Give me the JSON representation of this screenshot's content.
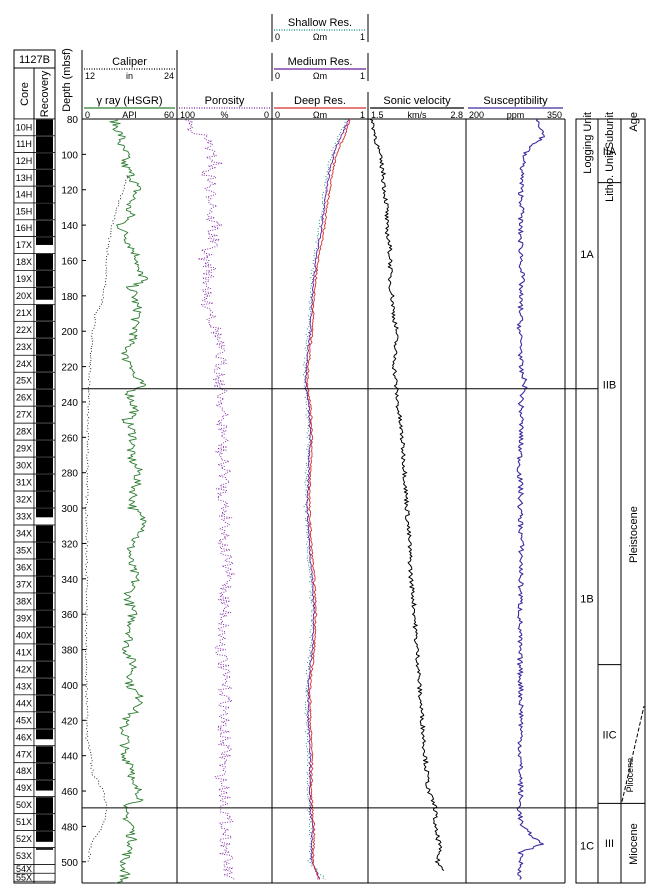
{
  "hole": "1127B",
  "column_labels": {
    "core": "Core",
    "recovery": "Recovery",
    "depth": "Depth (mbsf)",
    "logging_unit": "Logging Unit",
    "litho_unit": "Litho. Unit/Subunit",
    "age": "Age"
  },
  "colors": {
    "caliper": "#000000",
    "gamma": "#2e7d32",
    "porosity": "#7b1fa2",
    "shallow_res": "#00897b",
    "medium_res": "#6a1b9a",
    "deep_res": "#d32f2f",
    "sonic": "#000000",
    "susceptibility": "#3f2a9e"
  },
  "tracks": [
    {
      "id": "gamma",
      "headers": [
        {
          "title": "Caliper",
          "min": "12",
          "unit": "in",
          "max": "24",
          "color": "#000000",
          "style": "dotted"
        },
        {
          "title": "γ ray (HSGR)",
          "min": "0",
          "unit": "API",
          "max": "60",
          "color": "#2e7d32",
          "style": "solid"
        }
      ]
    },
    {
      "id": "porosity",
      "headers": [
        {
          "title": "Porosity",
          "min": "100",
          "unit": "%",
          "max": "0",
          "color": "#7b1fa2",
          "style": "dotted"
        }
      ]
    },
    {
      "id": "resistivity",
      "headers": [
        {
          "title": "Shallow Res.",
          "min": "0",
          "unit": "Ωm",
          "max": "1",
          "color": "#00897b",
          "style": "dotted"
        },
        {
          "title": "Medium Res.",
          "min": "0",
          "unit": "Ωm",
          "max": "1",
          "color": "#6a1b9a",
          "style": "solid"
        },
        {
          "title": "Deep Res.",
          "min": "0",
          "unit": "Ωm",
          "max": "1",
          "color": "#d32f2f",
          "style": "solid"
        }
      ]
    },
    {
      "id": "sonic",
      "headers": [
        {
          "title": "Sonic velocity",
          "min": "1.5",
          "unit": "km/s",
          "max": "2.8",
          "color": "#000000",
          "style": "solid"
        }
      ]
    },
    {
      "id": "susceptibility",
      "headers": [
        {
          "title": "Susceptibility",
          "min": "200",
          "unit": "ppm",
          "max": "350",
          "color": "#3f2a9e",
          "style": "solid"
        }
      ]
    }
  ],
  "depth_ticks": [
    "80",
    "100",
    "120",
    "140",
    "160",
    "180",
    "200",
    "220",
    "240",
    "260",
    "280",
    "300",
    "320",
    "340",
    "360",
    "380",
    "400",
    "420",
    "440",
    "460",
    "480",
    "500"
  ],
  "cores": [
    {
      "name": "10H",
      "top": 80,
      "bottom": 89.5,
      "rec_bottom": 89.5
    },
    {
      "name": "11H",
      "top": 89.5,
      "bottom": 99,
      "rec_bottom": 99
    },
    {
      "name": "12H",
      "top": 99,
      "bottom": 108.5,
      "rec_bottom": 108.5
    },
    {
      "name": "13H",
      "top": 108.5,
      "bottom": 118,
      "rec_bottom": 118
    },
    {
      "name": "14H",
      "top": 118,
      "bottom": 127.5,
      "rec_bottom": 127.5
    },
    {
      "name": "15H",
      "top": 127.5,
      "bottom": 137,
      "rec_bottom": 137
    },
    {
      "name": "16H",
      "top": 137,
      "bottom": 146.5,
      "rec_bottom": 146.5
    },
    {
      "name": "17X",
      "top": 146.5,
      "bottom": 156,
      "rec_bottom": 151.5
    },
    {
      "name": "18X",
      "top": 156,
      "bottom": 165.6,
      "rec_bottom": 165.6
    },
    {
      "name": "19X",
      "top": 165.6,
      "bottom": 175.2,
      "rec_bottom": 175.2
    },
    {
      "name": "20X",
      "top": 175.2,
      "bottom": 184.8,
      "rec_bottom": 182.5
    },
    {
      "name": "21X",
      "top": 184.8,
      "bottom": 194.4,
      "rec_bottom": 194.4
    },
    {
      "name": "22X",
      "top": 194.4,
      "bottom": 204,
      "rec_bottom": 204
    },
    {
      "name": "23X",
      "top": 204,
      "bottom": 213.6,
      "rec_bottom": 213.6
    },
    {
      "name": "24X",
      "top": 213.6,
      "bottom": 223.2,
      "rec_bottom": 223.2
    },
    {
      "name": "25X",
      "top": 223.2,
      "bottom": 232.8,
      "rec_bottom": 232.8
    },
    {
      "name": "26X",
      "top": 232.8,
      "bottom": 242.4,
      "rec_bottom": 242.4
    },
    {
      "name": "27X",
      "top": 242.4,
      "bottom": 252,
      "rec_bottom": 252
    },
    {
      "name": "28X",
      "top": 252,
      "bottom": 261.6,
      "rec_bottom": 261.6
    },
    {
      "name": "29X",
      "top": 261.6,
      "bottom": 271.2,
      "rec_bottom": 271.2
    },
    {
      "name": "30X",
      "top": 271.2,
      "bottom": 280.8,
      "rec_bottom": 280.8
    },
    {
      "name": "31X",
      "top": 280.8,
      "bottom": 290.4,
      "rec_bottom": 290.4
    },
    {
      "name": "32X",
      "top": 290.4,
      "bottom": 300,
      "rec_bottom": 300
    },
    {
      "name": "33X",
      "top": 300,
      "bottom": 309.6,
      "rec_bottom": 305.5
    },
    {
      "name": "34X",
      "top": 309.6,
      "bottom": 319.2,
      "rec_bottom": 319.2
    },
    {
      "name": "35X",
      "top": 319.2,
      "bottom": 328.8,
      "rec_bottom": 328.8
    },
    {
      "name": "36X",
      "top": 328.8,
      "bottom": 338.4,
      "rec_bottom": 338.4
    },
    {
      "name": "37X",
      "top": 338.4,
      "bottom": 348,
      "rec_bottom": 348
    },
    {
      "name": "38X",
      "top": 348,
      "bottom": 357.6,
      "rec_bottom": 357.6
    },
    {
      "name": "39X",
      "top": 357.6,
      "bottom": 367.2,
      "rec_bottom": 367.2
    },
    {
      "name": "40X",
      "top": 367.2,
      "bottom": 376.8,
      "rec_bottom": 376.8
    },
    {
      "name": "41X",
      "top": 376.8,
      "bottom": 386.4,
      "rec_bottom": 386.4
    },
    {
      "name": "42X",
      "top": 386.4,
      "bottom": 396,
      "rec_bottom": 396
    },
    {
      "name": "43X",
      "top": 396,
      "bottom": 405.6,
      "rec_bottom": 405.6
    },
    {
      "name": "44X",
      "top": 405.6,
      "bottom": 415.2,
      "rec_bottom": 415.2
    },
    {
      "name": "45X",
      "top": 415.2,
      "bottom": 424.8,
      "rec_bottom": 424.8
    },
    {
      "name": "46X",
      "top": 424.8,
      "bottom": 434.4,
      "rec_bottom": 431
    },
    {
      "name": "47X",
      "top": 434.4,
      "bottom": 444,
      "rec_bottom": 444
    },
    {
      "name": "48X",
      "top": 444,
      "bottom": 453.6,
      "rec_bottom": 453.6
    },
    {
      "name": "49X",
      "top": 453.6,
      "bottom": 463.2,
      "rec_bottom": 460
    },
    {
      "name": "50X",
      "top": 463.2,
      "bottom": 472.8,
      "rec_bottom": 472.8
    },
    {
      "name": "51X",
      "top": 472.8,
      "bottom": 482.4,
      "rec_bottom": 482.4
    },
    {
      "name": "52X",
      "top": 482.4,
      "bottom": 492,
      "rec_bottom": 489
    },
    {
      "name": "53X",
      "top": 492,
      "bottom": 501.6,
      "rec_bottom": 493.5
    },
    {
      "name": "54X",
      "top": 501.6,
      "bottom": 506.5,
      "rec_bottom": 502
    },
    {
      "name": "55X",
      "top": 506.5,
      "bottom": 511,
      "rec_bottom": 507
    }
  ],
  "logging_units": [
    {
      "label": "1A",
      "top": 80,
      "bottom": 232.5
    },
    {
      "label": "1B",
      "top": 232.5,
      "bottom": 469.5
    },
    {
      "label": "1C",
      "top": 469.5,
      "bottom": 512
    }
  ],
  "litho_units": [
    {
      "label": "IIA",
      "top": 80,
      "bottom": 116
    },
    {
      "label": "IIB",
      "top": 116,
      "bottom": 388.5
    },
    {
      "label": "IIC",
      "top": 388.5,
      "bottom": 467
    },
    {
      "label": "III",
      "top": 467,
      "bottom": 512
    }
  ],
  "ages": [
    {
      "label": "Pleistocene"
    },
    {
      "label": "Pliocene"
    },
    {
      "label": "Miocene"
    }
  ],
  "chart_data": {
    "type": "line",
    "title": "",
    "ylabel": "Depth (mbsf)",
    "ylim": [
      80,
      512
    ],
    "yaxis_inverted": true,
    "boundaries_mbsf": [
      232.5,
      469.5
    ],
    "series": [
      {
        "name": "Caliper",
        "unit": "in",
        "xlim": [
          12,
          24
        ],
        "x": [
          17.8,
          17.2,
          16.8,
          16.4,
          16.1,
          15.8,
          15.6,
          15.4,
          15.2,
          15.1,
          15.0,
          14.5,
          13.7,
          13.4,
          13.2,
          13.0,
          12.9,
          12.8,
          12.7,
          12.7,
          12.6,
          12.6,
          12.6,
          12.5,
          12.5,
          12.6,
          12.6,
          12.7,
          12.6,
          13.1,
          13.3,
          14.8,
          15.1,
          14.6,
          13.2,
          12.8
        ],
        "y": [
          112,
          120,
          125,
          130,
          135,
          140,
          145,
          150,
          155,
          160,
          170,
          185,
          190,
          200,
          210,
          220,
          232,
          240,
          260,
          280,
          300,
          320,
          340,
          360,
          380,
          400,
          410,
          420,
          430,
          440,
          450,
          460,
          470,
          480,
          490,
          500
        ]
      },
      {
        "name": "γ ray (HSGR)",
        "unit": "API",
        "xlim": [
          0,
          60
        ],
        "x": [
          20,
          22,
          25,
          24,
          28,
          26,
          30,
          33,
          35,
          32,
          29,
          31,
          24,
          27,
          30,
          33,
          36,
          34,
          40,
          31,
          33,
          34,
          36,
          33,
          34,
          31,
          29,
          27,
          33,
          32,
          38,
          30,
          32,
          34,
          28,
          31,
          33,
          30,
          36,
          33,
          32,
          42,
          31,
          30,
          34,
          29,
          32,
          31,
          28,
          33,
          30,
          39,
          27,
          26,
          28,
          27,
          25,
          32,
          33,
          30,
          36,
          38,
          25,
          28,
          32,
          31,
          32,
          29,
          26,
          27,
          26,
          28,
          27,
          26,
          25,
          24
        ],
        "y": [
          80,
          85,
          90,
          95,
          100,
          105,
          110,
          115,
          120,
          125,
          130,
          135,
          140,
          145,
          150,
          155,
          160,
          165,
          170,
          175,
          180,
          185,
          190,
          195,
          200,
          205,
          210,
          215,
          220,
          225,
          230,
          235,
          240,
          245,
          250,
          255,
          260,
          270,
          280,
          290,
          300,
          310,
          320,
          330,
          340,
          350,
          360,
          370,
          380,
          390,
          400,
          410,
          420,
          425,
          430,
          435,
          440,
          445,
          450,
          455,
          460,
          465,
          470,
          475,
          480,
          485,
          490,
          495,
          500,
          502,
          504,
          506,
          508,
          510,
          511,
          512
        ]
      },
      {
        "name": "Porosity",
        "unit": "%",
        "xlim": [
          100,
          0
        ],
        "x": [
          88,
          85,
          72,
          65,
          66,
          58,
          70,
          62,
          68,
          62,
          60,
          66,
          58,
          64,
          61,
          69,
          72,
          63,
          69,
          66,
          72,
          68,
          61,
          63,
          58,
          56,
          54,
          55,
          52,
          53,
          51,
          54,
          49,
          52,
          50,
          47,
          51,
          48,
          46,
          50,
          49,
          52,
          53,
          51,
          50,
          48,
          52,
          51,
          49,
          54,
          50,
          48,
          48,
          46
        ],
        "y": [
          80,
          85,
          90,
          95,
          100,
          105,
          110,
          115,
          120,
          125,
          130,
          135,
          140,
          145,
          150,
          155,
          160,
          165,
          170,
          175,
          180,
          185,
          190,
          195,
          200,
          210,
          220,
          230,
          240,
          250,
          260,
          270,
          280,
          290,
          300,
          310,
          320,
          330,
          340,
          350,
          360,
          370,
          380,
          390,
          400,
          410,
          420,
          430,
          440,
          450,
          460,
          480,
          500,
          510
        ]
      },
      {
        "name": "Shallow Res.",
        "unit": "Ωm",
        "xlim": [
          0,
          1
        ],
        "x": [
          0.78,
          0.7,
          0.62,
          0.58,
          0.55,
          0.52,
          0.5,
          0.47,
          0.44,
          0.42,
          0.4,
          0.39,
          0.38,
          0.36,
          0.34,
          0.34,
          0.36,
          0.38,
          0.36,
          0.35,
          0.37,
          0.4,
          0.42,
          0.4,
          0.36,
          0.36,
          0.38,
          0.37,
          0.38,
          0.4,
          0.39,
          0.55
        ],
        "y": [
          80,
          90,
          100,
          110,
          120,
          130,
          140,
          150,
          160,
          170,
          180,
          190,
          200,
          210,
          220,
          230,
          240,
          260,
          280,
          300,
          320,
          340,
          360,
          380,
          400,
          420,
          440,
          460,
          470,
          480,
          500,
          510
        ]
      },
      {
        "name": "Medium Res.",
        "unit": "Ωm",
        "xlim": [
          0,
          1
        ],
        "x": [
          0.8,
          0.72,
          0.64,
          0.6,
          0.57,
          0.54,
          0.52,
          0.49,
          0.46,
          0.44,
          0.42,
          0.41,
          0.4,
          0.38,
          0.36,
          0.35,
          0.38,
          0.4,
          0.38,
          0.37,
          0.39,
          0.42,
          0.44,
          0.42,
          0.38,
          0.38,
          0.4,
          0.39,
          0.4,
          0.42,
          0.41,
          0.5
        ],
        "y": [
          80,
          90,
          100,
          110,
          120,
          130,
          140,
          150,
          160,
          170,
          180,
          190,
          200,
          210,
          220,
          230,
          240,
          260,
          280,
          300,
          320,
          340,
          360,
          380,
          400,
          420,
          440,
          460,
          470,
          480,
          500,
          510
        ]
      },
      {
        "name": "Deep Res.",
        "unit": "Ωm",
        "xlim": [
          0,
          1
        ],
        "x": [
          0.82,
          0.75,
          0.67,
          0.63,
          0.6,
          0.57,
          0.55,
          0.52,
          0.48,
          0.46,
          0.44,
          0.43,
          0.42,
          0.4,
          0.38,
          0.37,
          0.4,
          0.42,
          0.4,
          0.39,
          0.41,
          0.44,
          0.46,
          0.44,
          0.4,
          0.4,
          0.42,
          0.41,
          0.42,
          0.44,
          0.43,
          0.48
        ],
        "y": [
          80,
          90,
          100,
          110,
          120,
          130,
          140,
          150,
          160,
          170,
          180,
          190,
          200,
          210,
          220,
          230,
          240,
          260,
          280,
          300,
          320,
          340,
          360,
          380,
          400,
          420,
          440,
          460,
          470,
          480,
          500,
          510
        ]
      },
      {
        "name": "Sonic velocity",
        "unit": "km/s",
        "xlim": [
          1.5,
          2.8
        ],
        "x": [
          1.55,
          1.6,
          1.65,
          1.7,
          1.72,
          1.75,
          1.74,
          1.78,
          1.8,
          1.79,
          1.82,
          1.84,
          1.88,
          1.86,
          1.85,
          1.87,
          1.89,
          1.92,
          1.95,
          1.97,
          1.99,
          2.0,
          2.02,
          2.03,
          2.05,
          2.06,
          2.07,
          2.1,
          2.12,
          2.13,
          2.15,
          2.17,
          2.18,
          2.2,
          2.22,
          2.24,
          2.26,
          2.3,
          2.4,
          2.38,
          2.45,
          2.42,
          2.5
        ],
        "y": [
          80,
          90,
          100,
          110,
          120,
          130,
          140,
          150,
          160,
          170,
          180,
          190,
          200,
          210,
          220,
          230,
          240,
          250,
          260,
          270,
          280,
          290,
          300,
          310,
          320,
          330,
          340,
          350,
          360,
          370,
          380,
          390,
          400,
          410,
          420,
          430,
          440,
          460,
          470,
          480,
          490,
          500,
          505
        ]
      },
      {
        "name": "Susceptibility",
        "unit": "ppm",
        "xlim": [
          200,
          350
        ],
        "x": [
          310,
          318,
          300,
          288,
          285,
          283,
          285,
          282,
          283,
          284,
          285,
          282,
          283,
          281,
          284,
          282,
          290,
          283,
          284,
          283,
          282,
          281,
          283,
          282,
          284,
          283,
          282,
          281,
          283,
          284,
          282,
          283,
          281,
          284,
          315,
          282,
          283,
          282
        ],
        "y": [
          80,
          90,
          95,
          100,
          110,
          120,
          130,
          140,
          150,
          160,
          170,
          180,
          190,
          200,
          210,
          220,
          230,
          240,
          250,
          260,
          270,
          280,
          290,
          300,
          320,
          340,
          360,
          380,
          400,
          420,
          440,
          460,
          470,
          480,
          490,
          495,
          500,
          510
        ]
      }
    ]
  }
}
